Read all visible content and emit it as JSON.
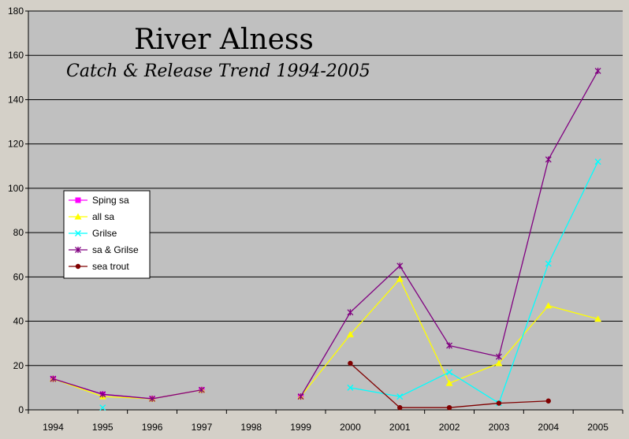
{
  "chart_data": {
    "type": "line",
    "title": "River Alness",
    "subtitle": "Catch & Release Trend 1994-2005",
    "categories": [
      "1994",
      "1995",
      "1996",
      "1997",
      "1998",
      "1999",
      "2000",
      "2001",
      "2002",
      "2003",
      "2004",
      "2005"
    ],
    "ylim": [
      0,
      180
    ],
    "yticks": [
      0,
      20,
      40,
      60,
      80,
      100,
      120,
      140,
      160,
      180
    ],
    "grid": true,
    "legend_position": "left",
    "series": [
      {
        "name": "Sping sa",
        "color": "#ff00ff",
        "marker": "square",
        "values": [
          14,
          7,
          5,
          9,
          null,
          6,
          null,
          null,
          null,
          null,
          null,
          null
        ]
      },
      {
        "name": "all sa",
        "color": "#ffff00",
        "marker": "triangle",
        "values": [
          14,
          6,
          5,
          9,
          null,
          6,
          34,
          59,
          12,
          21,
          47,
          41
        ]
      },
      {
        "name": "Grilse",
        "color": "#00ffff",
        "marker": "x",
        "values": [
          null,
          1,
          null,
          null,
          null,
          null,
          10,
          6,
          17,
          3,
          66,
          112
        ]
      },
      {
        "name": "sa & Grilse",
        "color": "#800080",
        "marker": "star",
        "values": [
          14,
          7,
          5,
          9,
          null,
          6,
          44,
          65,
          29,
          24,
          113,
          153
        ]
      },
      {
        "name": "sea trout",
        "color": "#800000",
        "marker": "circle",
        "values": [
          null,
          null,
          null,
          null,
          null,
          null,
          21,
          1,
          1,
          3,
          4,
          null
        ]
      }
    ]
  }
}
